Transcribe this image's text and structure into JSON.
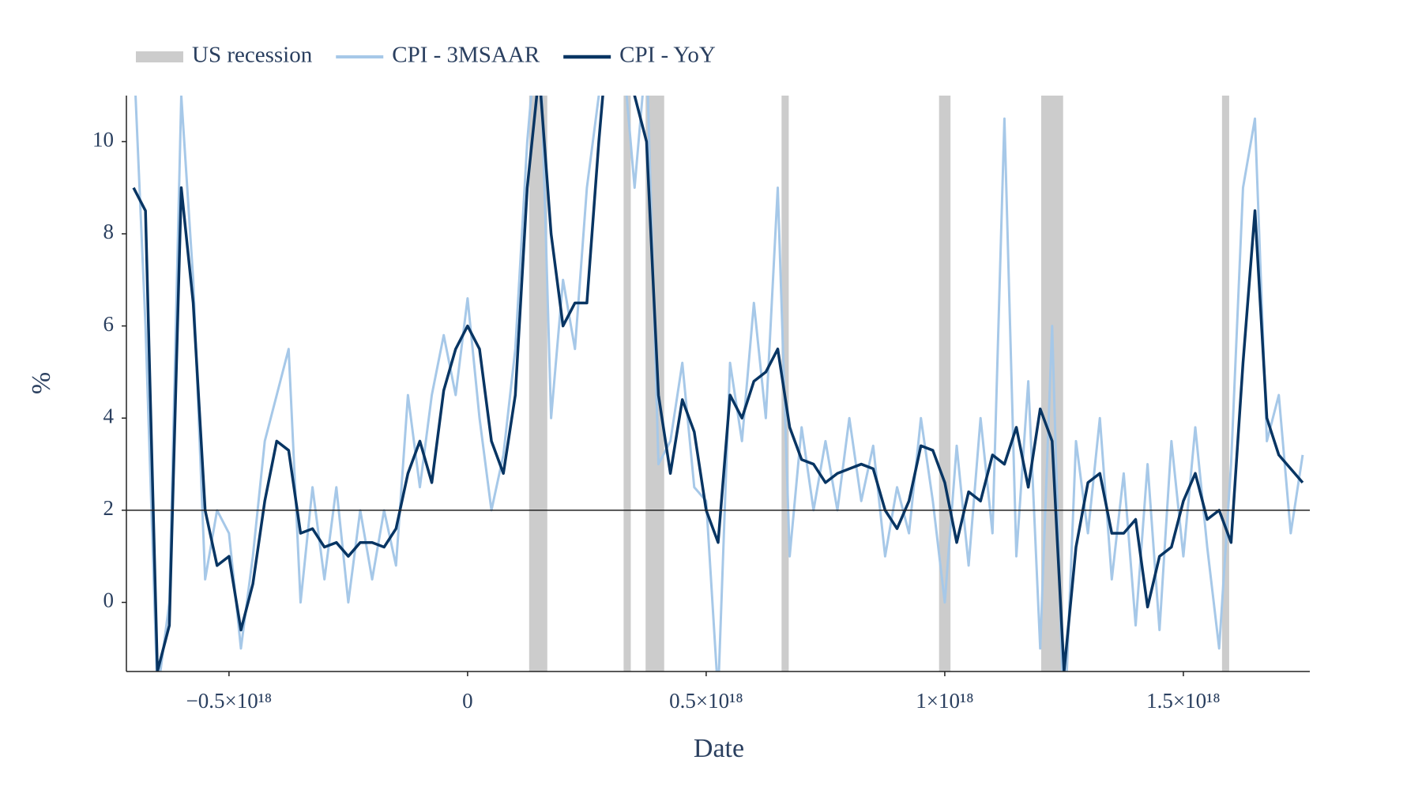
{
  "chart_data": {
    "type": "line",
    "x_label": "Date",
    "y_label": "%",
    "xlim": [
      -7.15e+17,
      1.765e+18
    ],
    "ylim": [
      -1.5,
      11
    ],
    "xticks": [
      {
        "value": -5e+17,
        "label": "−0.5×10¹⁸"
      },
      0,
      {
        "value": 5e+17,
        "label": "0.5×10¹⁸"
      },
      {
        "value": 1e+18,
        "label": "1×10¹⁸"
      },
      {
        "value": 1.5e+18,
        "label": "1.5×10¹⁸"
      }
    ],
    "yticks": [
      0,
      2,
      4,
      6,
      8,
      10
    ],
    "hline": 2,
    "recession": {
      "name": "US recession",
      "color": "#cccccc",
      "spans": [
        {
          "start": 1.29e+17,
          "end": 1.67e+17
        },
        {
          "start": 3.27e+17,
          "end": 3.42e+17
        },
        {
          "start": 3.73e+17,
          "end": 4.12e+17
        },
        {
          "start": 6.58e+17,
          "end": 6.73e+17
        },
        {
          "start": 9.88e+17,
          "end": 1.012e+18
        },
        {
          "start": 1.202e+18,
          "end": 1.248e+18
        },
        {
          "start": 1.581e+18,
          "end": 1.596e+18
        }
      ]
    },
    "x": [
      -7e+17,
      -6.75e+17,
      -6.5e+17,
      -6.25e+17,
      -6e+17,
      -5.75e+17,
      -5.5e+17,
      -5.25e+17,
      -5e+17,
      -4.75e+17,
      -4.5e+17,
      -4.25e+17,
      -4e+17,
      -3.75e+17,
      -3.5e+17,
      -3.25e+17,
      -3e+17,
      -2.75e+17,
      -2.5e+17,
      -2.25e+17,
      -2e+17,
      -1.75e+17,
      -1.5e+17,
      -1.25e+17,
      -1e+17,
      -7.5e+16,
      -5e+16,
      -2.5e+16,
      0,
      2.5e+16,
      5e+16,
      7.5e+16,
      1e+17,
      1.25e+17,
      1.5e+17,
      1.75e+17,
      2e+17,
      2.25e+17,
      2.5e+17,
      2.75e+17,
      3e+17,
      3.25e+17,
      3.5e+17,
      3.75e+17,
      4e+17,
      4.25e+17,
      4.5e+17,
      4.75e+17,
      5e+17,
      5.25e+17,
      5.5e+17,
      5.75e+17,
      6e+17,
      6.25e+17,
      6.5e+17,
      6.75e+17,
      7e+17,
      7.25e+17,
      7.5e+17,
      7.75e+17,
      8e+17,
      8.25e+17,
      8.5e+17,
      8.75e+17,
      9e+17,
      9.25e+17,
      9.5e+17,
      9.75e+17,
      1e+18,
      1.025e+18,
      1.05e+18,
      1.075e+18,
      1.1e+18,
      1.125e+18,
      1.15e+18,
      1.175e+18,
      1.2e+18,
      1.225e+18,
      1.25e+18,
      1.275e+18,
      1.3e+18,
      1.325e+18,
      1.35e+18,
      1.375e+18,
      1.4e+18,
      1.425e+18,
      1.45e+18,
      1.475e+18,
      1.5e+18,
      1.525e+18,
      1.55e+18,
      1.575e+18,
      1.6e+18,
      1.625e+18,
      1.65e+18,
      1.675e+18,
      1.7e+18,
      1.725e+18,
      1.75e+18
    ],
    "series": [
      {
        "name": "CPI - 3MSAAR",
        "color": "#a6c8e8",
        "width": 3,
        "values": [
          12,
          6,
          -2,
          0,
          11,
          7,
          0.5,
          2,
          1.5,
          -1,
          1,
          3.5,
          4.5,
          5.5,
          0,
          2.5,
          0.5,
          2.5,
          0,
          2,
          0.5,
          2,
          0.8,
          4.5,
          2.5,
          4.5,
          5.8,
          4.5,
          6.6,
          4,
          2,
          3.2,
          5.5,
          10,
          13,
          4,
          7,
          5.5,
          9,
          11,
          14,
          12,
          9,
          12,
          3,
          3.5,
          5.2,
          2.5,
          2.2,
          -2,
          5.2,
          3.5,
          6.5,
          4,
          9,
          1,
          3.8,
          2,
          3.5,
          2,
          4,
          2.2,
          3.4,
          1,
          2.5,
          1.5,
          4,
          2.2,
          0,
          3.4,
          0.8,
          4,
          1.5,
          10.5,
          1,
          4.8,
          -1,
          6,
          -3,
          3.5,
          1.5,
          4,
          0.5,
          2.8,
          -0.5,
          3,
          -0.6,
          3.5,
          1,
          3.8,
          1.2,
          -1,
          3,
          9,
          10.5,
          3.5,
          4.5,
          1.5,
          3.2
        ]
      },
      {
        "name": "CPI - YoY",
        "color": "#083563",
        "width": 3.5,
        "values": [
          9,
          8.5,
          -1.5,
          -0.5,
          9,
          6.5,
          2,
          0.8,
          1,
          -0.6,
          0.4,
          2.2,
          3.5,
          3.3,
          1.5,
          1.6,
          1.2,
          1.3,
          1.0,
          1.3,
          1.3,
          1.2,
          1.6,
          2.8,
          3.5,
          2.6,
          4.6,
          5.5,
          6.0,
          5.5,
          3.5,
          2.8,
          4.5,
          9,
          11.5,
          8,
          6,
          6.5,
          6.5,
          10,
          13,
          13,
          11,
          10,
          4.5,
          2.8,
          4.4,
          3.7,
          2.0,
          1.3,
          4.5,
          4.0,
          4.8,
          5.0,
          5.5,
          3.8,
          3.1,
          3.0,
          2.6,
          2.8,
          2.9,
          3.0,
          2.9,
          2.0,
          1.6,
          2.2,
          3.4,
          3.3,
          2.6,
          1.3,
          2.4,
          2.2,
          3.2,
          3.0,
          3.8,
          2.5,
          4.2,
          3.5,
          -1.5,
          1.2,
          2.6,
          2.8,
          1.5,
          1.5,
          1.8,
          -0.1,
          1.0,
          1.2,
          2.2,
          2.8,
          1.8,
          2.0,
          1.3,
          5.2,
          8.5,
          4.0,
          3.2,
          2.9,
          2.6
        ]
      }
    ]
  }
}
